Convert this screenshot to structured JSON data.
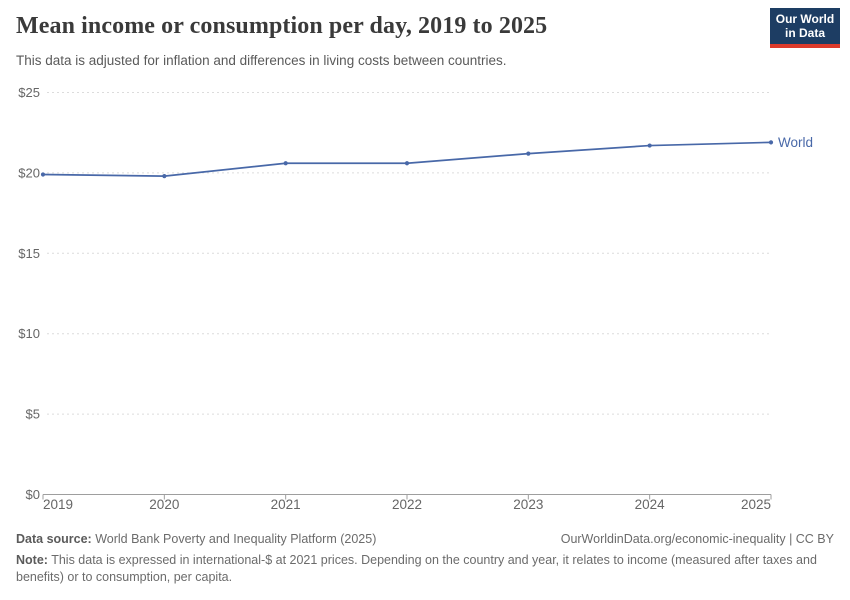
{
  "header": {
    "title": "Mean income or consumption per day, 2019 to 2025",
    "subtitle": "This data is adjusted for inflation and differences in living costs between countries.",
    "logo": {
      "line1": "Our World",
      "line2": "in Data"
    }
  },
  "chart_data": {
    "type": "line",
    "title": "Mean income or consumption per day, 2019 to 2025",
    "x": [
      2019,
      2020,
      2021,
      2022,
      2023,
      2024,
      2025
    ],
    "series": [
      {
        "name": "World",
        "values": [
          19.9,
          19.8,
          20.6,
          20.6,
          21.2,
          21.7,
          21.9
        ],
        "color": "#4868a8"
      }
    ],
    "xlabel": "",
    "ylabel": "",
    "ylim": [
      0,
      25
    ],
    "yticks": [
      0,
      5,
      10,
      15,
      20,
      25
    ],
    "ytick_prefix": "$",
    "grid": "horizontal-dashed",
    "legend": "end-of-line-label"
  },
  "footer": {
    "datasource_label": "Data source:",
    "datasource_text": " World Bank Poverty and Inequality Platform (2025)",
    "link": "OurWorldinData.org/economic-inequality | CC BY",
    "note_label": "Note:",
    "note_text": " This data is expressed in international-$ at 2021 prices. Depending on the country and year, it relates to income (measured after taxes and benefits) or to consumption, per capita."
  },
  "colors": {
    "line": "#4868a8",
    "grid": "#dcdcdc",
    "axis": "#9e9e9e",
    "tick_text": "#666666",
    "logo_bg": "#1d3d63",
    "logo_stripe": "#dc3a2b"
  }
}
